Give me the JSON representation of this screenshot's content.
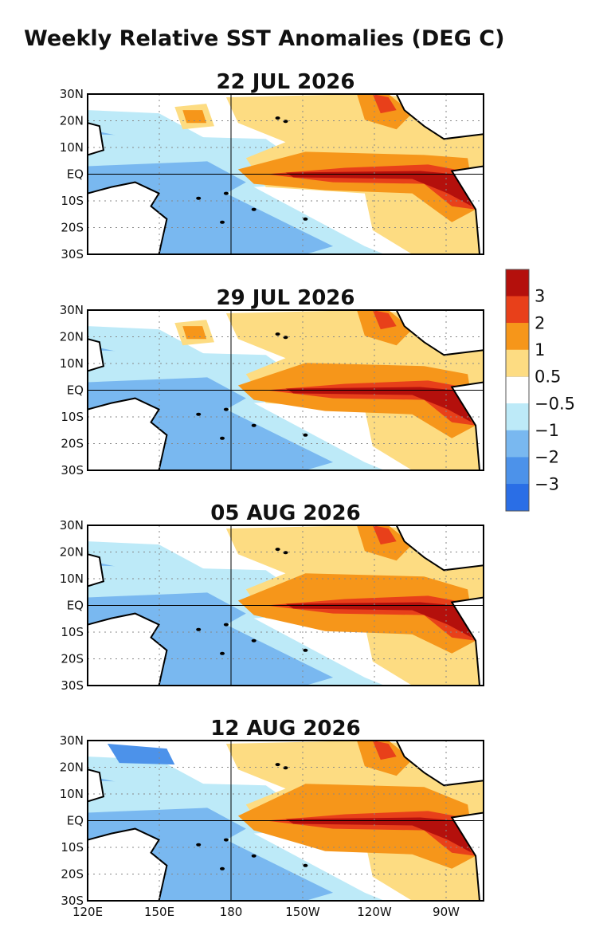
{
  "figure": {
    "title": "Weekly Relative SST Anomalies (DEG C)"
  },
  "panels": [
    {
      "date": "22 JUL 2026"
    },
    {
      "date": "29 JUL 2026"
    },
    {
      "date": "05 AUG 2026"
    },
    {
      "date": "12 AUG 2026"
    }
  ],
  "axes": {
    "lat_labels": [
      "30N",
      "20N",
      "10N",
      "EQ",
      "10S",
      "20S",
      "30S"
    ],
    "lon_labels": [
      "120E",
      "150E",
      "180",
      "150W",
      "120W",
      "90W"
    ]
  },
  "colorbar": {
    "labels": [
      "3",
      "2",
      "1",
      "0.5",
      "−0.5",
      "−1",
      "−2",
      "−3"
    ],
    "colors": [
      "#b4100c",
      "#e8401a",
      "#f6961a",
      "#fddc82",
      "#ffffff",
      "#bdeaf8",
      "#79b8f0",
      "#4c92ea",
      "#2a6ee6"
    ]
  }
}
